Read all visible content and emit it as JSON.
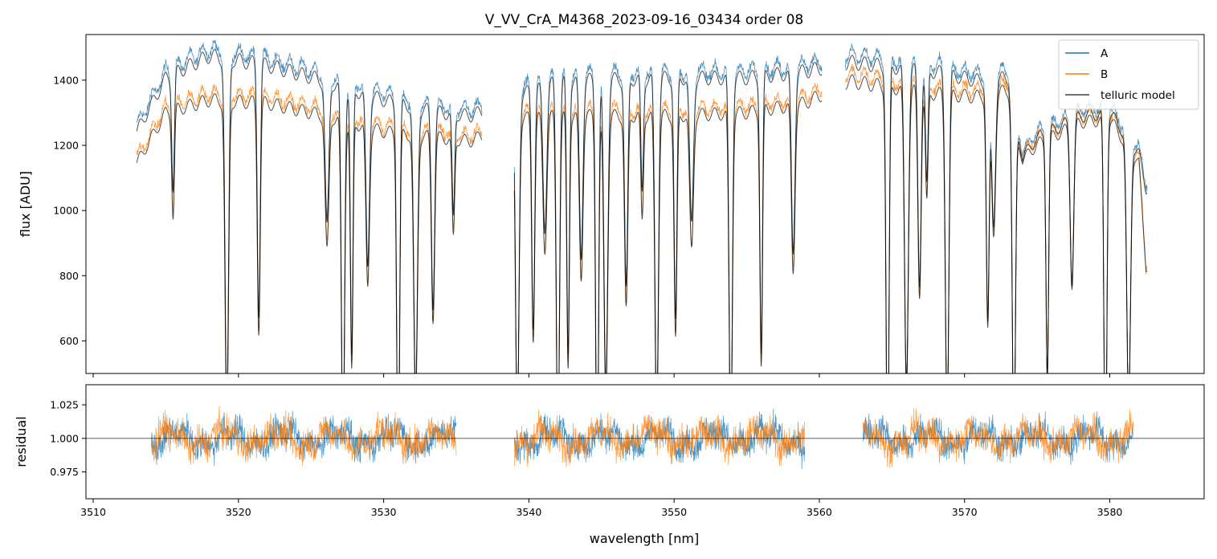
{
  "chart_data": [
    {
      "panel": "top",
      "type": "line",
      "title": "V_VV_CrA_M4368_2023-09-16_03434  order 08",
      "xlabel": "",
      "ylabel": "flux [ADU]",
      "xlim": [
        3509.5,
        3586.5
      ],
      "ylim": [
        500,
        1540
      ],
      "yticks": [
        600,
        800,
        1000,
        1200,
        1400
      ],
      "ytick_labels": [
        "600",
        "800",
        "1000",
        "1200",
        "1400"
      ],
      "xticks": [
        3510,
        3520,
        3530,
        3540,
        3550,
        3560,
        3570,
        3580
      ],
      "legend_position": "top-right",
      "series": [
        {
          "name": "A",
          "color": "#1f77b4",
          "role": "spectrum A (observed flux)",
          "baseline_points": [
            [
              3513,
              1280
            ],
            [
              3515,
              1450
            ],
            [
              3518,
              1520
            ],
            [
              3522,
              1490
            ],
            [
              3526,
              1440
            ],
            [
              3530,
              1380
            ],
            [
              3534,
              1340
            ],
            [
              3536,
              1330
            ],
            [
              3539,
              1390
            ],
            [
              3542,
              1440
            ],
            [
              3550,
              1450
            ],
            [
              3555,
              1450
            ],
            [
              3559,
              1470
            ],
            [
              3562,
              1500
            ],
            [
              3568,
              1470
            ],
            [
              3571,
              1440
            ],
            [
              3573,
              1450
            ],
            [
              3574,
              1200
            ],
            [
              3575,
              1260
            ],
            [
              3578,
              1330
            ],
            [
              3580,
              1340
            ],
            [
              3582,
              1210
            ],
            [
              3582.5,
              1100
            ]
          ]
        },
        {
          "name": "B",
          "color": "#ff7f0e",
          "role": "spectrum B (observed flux)",
          "baseline_points": [
            [
              3513,
              1180
            ],
            [
              3515,
              1340
            ],
            [
              3518,
              1380
            ],
            [
              3522,
              1370
            ],
            [
              3526,
              1330
            ],
            [
              3530,
              1280
            ],
            [
              3534,
              1260
            ],
            [
              3536,
              1250
            ],
            [
              3539,
              1320
            ],
            [
              3542,
              1330
            ],
            [
              3550,
              1330
            ],
            [
              3555,
              1340
            ],
            [
              3559,
              1370
            ],
            [
              3562,
              1440
            ],
            [
              3568,
              1400
            ],
            [
              3571,
              1390
            ],
            [
              3573,
              1410
            ],
            [
              3574,
              1190
            ],
            [
              3575,
              1240
            ],
            [
              3578,
              1310
            ],
            [
              3580,
              1320
            ],
            [
              3582,
              1180
            ],
            [
              3582.5,
              850
            ]
          ]
        },
        {
          "name": "telluric model",
          "color": "#000000",
          "role": "telluric model fit"
        }
      ],
      "visible_x_ranges": [
        [
          3513,
          3536.8
        ],
        [
          3539.0,
          3560.2
        ],
        [
          3561.8,
          3582.6
        ]
      ],
      "absorption_lines_nm": [
        3515.5,
        3519.2,
        3521.4,
        3526.1,
        3527.2,
        3527.8,
        3528.9,
        3531.0,
        3532.2,
        3533.4,
        3534.8,
        3539.2,
        3540.3,
        3541.1,
        3542.0,
        3542.7,
        3543.6,
        3544.7,
        3545.3,
        3546.7,
        3547.8,
        3548.8,
        3550.1,
        3551.2,
        3553.9,
        3556.0,
        3558.2,
        3564.7,
        3566.0,
        3566.9,
        3567.4,
        3568.8,
        3571.6,
        3572.0,
        3573.4,
        3575.7,
        3577.4,
        3579.7,
        3581.3
      ]
    },
    {
      "panel": "bottom",
      "type": "line",
      "title": "",
      "xlabel": "wavelength [nm]",
      "ylabel": "residual",
      "xlim": [
        3509.5,
        3586.5
      ],
      "ylim": [
        0.955,
        1.04
      ],
      "yticks": [
        0.975,
        1.0,
        1.025
      ],
      "ytick_labels": [
        "0.975",
        "1.000",
        "1.025"
      ],
      "xticks": [
        3510,
        3520,
        3530,
        3540,
        3550,
        3560,
        3570,
        3580
      ],
      "xtick_labels": [
        "3510",
        "3520",
        "3530",
        "3540",
        "3550",
        "3560",
        "3570",
        "3580"
      ],
      "reference_line": 1.0,
      "series": [
        {
          "name": "A",
          "color": "#1f77b4"
        },
        {
          "name": "B",
          "color": "#ff7f0e"
        }
      ],
      "visible_x_ranges": [
        [
          3514.0,
          3535.0
        ],
        [
          3539.0,
          3559.0
        ],
        [
          3563.0,
          3581.6
        ]
      ]
    }
  ]
}
